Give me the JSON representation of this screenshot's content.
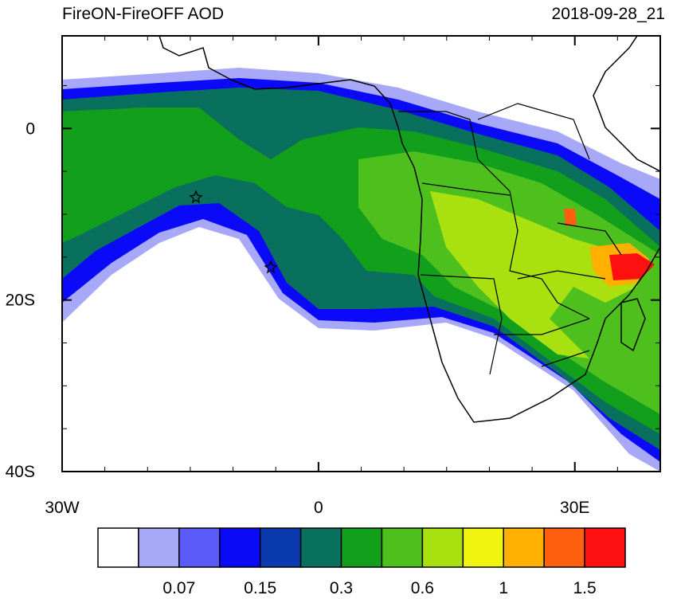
{
  "map": {
    "title": "FireON-FireOFF AOD",
    "time": "2018-09-28_21",
    "xlim": [
      -30,
      40
    ],
    "ylim": [
      -40,
      10.8
    ],
    "xticks": [
      {
        "value": -30,
        "label": "30W"
      },
      0,
      {
        "value": 30,
        "label": "30E"
      }
    ],
    "yticks": [
      0,
      {
        "value": -20,
        "label": "20S"
      },
      {
        "value": -40,
        "label": "40S"
      }
    ],
    "colorbar": {
      "colors": [
        "#ffffff",
        "#a8a8f8",
        "#5a5af8",
        "#0a0af8",
        "#0a3aae",
        "#0a705e",
        "#12a01c",
        "#4ec01e",
        "#a8e010",
        "#f0f510",
        "#ffb000",
        "#ff6010",
        "#ff1010"
      ],
      "labels": [
        "0.07",
        "0.15",
        "0.3",
        "0.6",
        "1",
        "1.5"
      ]
    }
  }
}
